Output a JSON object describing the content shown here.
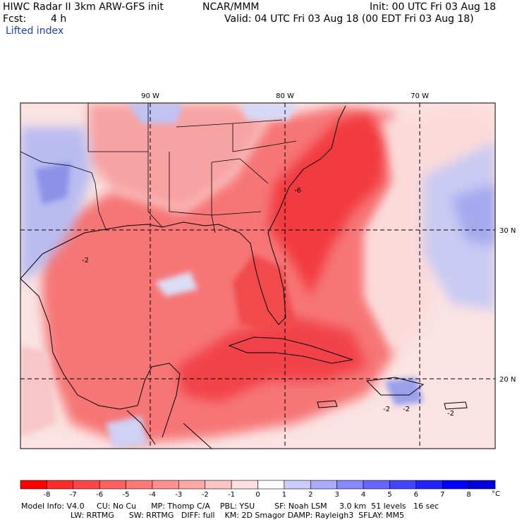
{
  "header": {
    "model_title": "HIWC Radar II 3km ARW-GFS init",
    "org": "NCAR/MMM",
    "init": "Init: 00 UTC Fri 03 Aug 18",
    "fcst_label": "Fcst:",
    "fcst_value": "4 h",
    "valid": "Valid: 04 UTC Fri 03 Aug 18 (00 EDT Fri 03 Aug 18)",
    "field": "Lifted index"
  },
  "map": {
    "lon_labels": [
      "90 W",
      "80 W",
      "70 W"
    ],
    "lat_labels": [
      "30 N",
      "20 N"
    ],
    "contour_labels": [
      "-2",
      "-6",
      "-2",
      "-2",
      "-2"
    ],
    "colors": {
      "neg_strong": "#f0202a",
      "neg_mid": "#f56a6e",
      "neg_light": "#fbb8b8",
      "neutral": "#fbe6e6",
      "pos_light": "#c8cbf5",
      "pos_mid": "#8a90ec",
      "pos_strong": "#4a52e0"
    }
  },
  "colorbar": {
    "ticks": [
      "-8",
      "-7",
      "-6",
      "-5",
      "-4",
      "-3",
      "-2",
      "-1",
      "0",
      "1",
      "2",
      "3",
      "4",
      "5",
      "6",
      "7",
      "8"
    ],
    "unit": "°C",
    "colors": [
      "#ff0000",
      "#ff2a2a",
      "#ff4646",
      "#ff6060",
      "#ff7878",
      "#ff9090",
      "#ffa8a8",
      "#ffc4c4",
      "#ffe0e0",
      "#ffffff",
      "#ccccff",
      "#aaaaff",
      "#8888ff",
      "#6666ff",
      "#4444ff",
      "#2222ff",
      "#0000ff",
      "#0000dd"
    ]
  },
  "footer": {
    "line1": "Model Info: V4.0     CU: No Cu      MP: Thomp C/A    PBL: YSU        SF: Noah LSM     3.0 km  51 levels   16 sec",
    "line2": "LW: RRTMG      SW: RRTMG   DIFF: full    KM: 2D Smagor DAMP: Rayleigh3  SFLAY: MM5"
  }
}
